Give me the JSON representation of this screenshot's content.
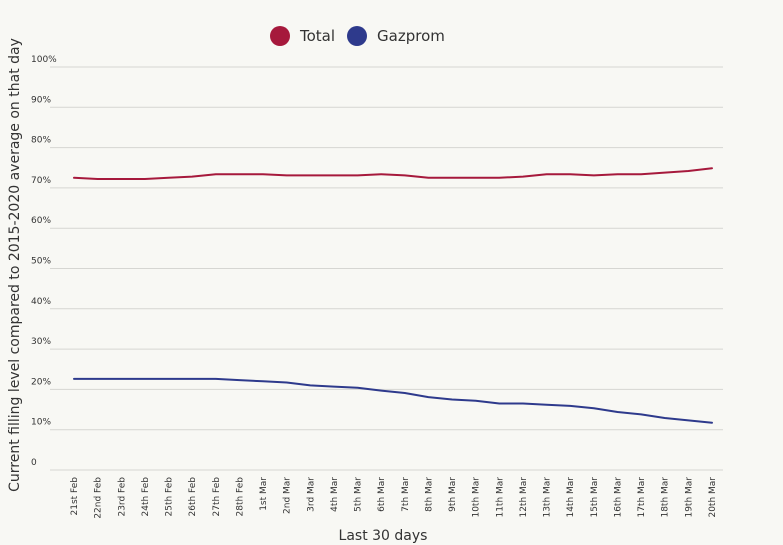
{
  "chart_data": {
    "type": "line",
    "xlabel": "Last 30 days",
    "ylabel": "Current filling level compared to 2015-2020 average on that day",
    "ylim": [
      0,
      100
    ],
    "yticks": [
      "0",
      "10%",
      "20%",
      "30%",
      "40%",
      "50%",
      "60%",
      "70%",
      "80%",
      "90%",
      "100%"
    ],
    "legend_position": "top-center",
    "grid": true,
    "x": [
      "21st Feb",
      "22nd Feb",
      "23rd Feb",
      "24th Feb",
      "25th Feb",
      "26th Feb",
      "27th Feb",
      "28th Feb",
      "1st Mar",
      "2nd Mar",
      "3rd Mar",
      "4th Mar",
      "5th Mar",
      "6th Mar",
      "7th Mar",
      "8th Mar",
      "9th Mar",
      "10th Mar",
      "11th Mar",
      "12th Mar",
      "13th Mar",
      "14th Mar",
      "15th Mar",
      "16th Mar",
      "17th Mar",
      "18th Mar",
      "19th Mar",
      "20th Mar"
    ],
    "series": [
      {
        "name": "Total",
        "color": "#a6193c",
        "values": [
          72.5,
          72.2,
          72.2,
          72.2,
          72.5,
          72.8,
          73.4,
          73.4,
          73.4,
          73.1,
          73.1,
          73.1,
          73.1,
          73.4,
          73.1,
          72.5,
          72.5,
          72.5,
          72.5,
          72.8,
          73.4,
          73.4,
          73.1,
          73.4,
          73.4,
          73.8,
          74.2,
          74.9
        ]
      },
      {
        "name": "Gazprom",
        "color": "#2e3a8c",
        "values": [
          22.6,
          22.6,
          22.6,
          22.6,
          22.6,
          22.6,
          22.6,
          22.3,
          22.0,
          21.7,
          21.0,
          20.7,
          20.4,
          19.7,
          19.1,
          18.1,
          17.5,
          17.2,
          16.5,
          16.5,
          16.2,
          15.9,
          15.3,
          14.4,
          13.8,
          12.9,
          12.3,
          11.7
        ]
      }
    ]
  }
}
